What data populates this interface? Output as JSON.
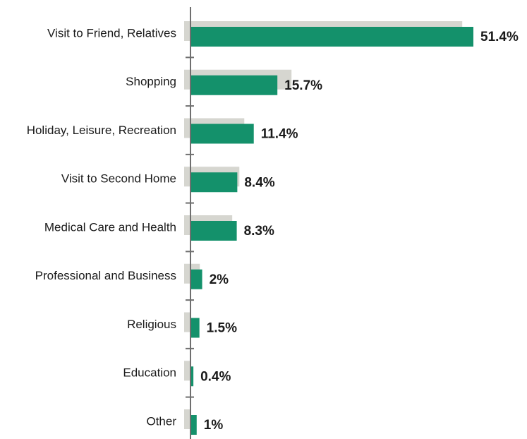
{
  "chart_data": {
    "type": "bar",
    "orientation": "horizontal",
    "categories": [
      "Visit to Friend, Relatives",
      "Shopping",
      "Holiday, Leisure, Recreation",
      "Visit to Second Home",
      "Medical Care and Health",
      "Professional and Business",
      "Religious",
      "Education",
      "Other"
    ],
    "series": [
      {
        "values": [
          51.4,
          15.7,
          11.4,
          8.4,
          8.3,
          2,
          1.5,
          0.4,
          1
        ],
        "value_labels": [
          "51.4%",
          "15.7%",
          "11.4%",
          "8.4%",
          "8.3%",
          "2%",
          "1.5%",
          "0.4%",
          "1%"
        ],
        "color": "#14916b"
      },
      {
        "values": [
          49.5,
          18.4,
          9.8,
          8.9,
          7.6,
          1.7,
          0,
          0,
          0
        ],
        "color": "#d6d6d0"
      }
    ],
    "xlim": [
      0,
      51.4
    ],
    "grid": false,
    "title": "",
    "xlabel": "",
    "ylabel": ""
  },
  "colors": {
    "bar_current": "#14916b",
    "bar_shadow": "#d6d6d0",
    "axis": "#6f6f6f",
    "text": "#1a1a1a"
  }
}
